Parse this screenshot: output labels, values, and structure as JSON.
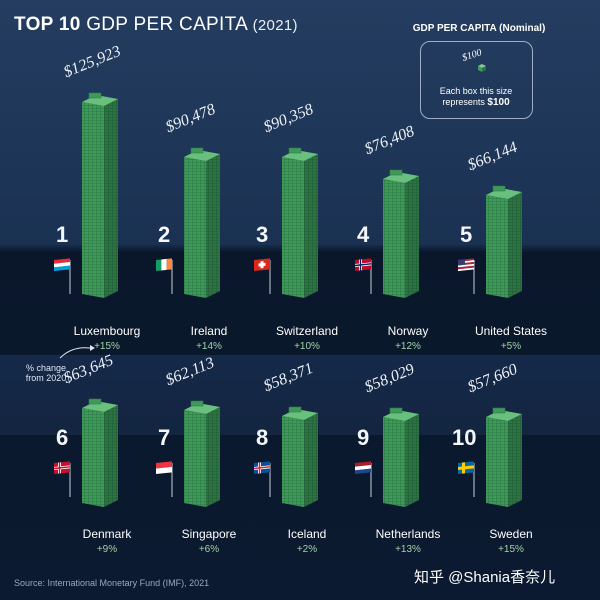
{
  "header": {
    "title_bold": "TOP 10",
    "title_rest": "GDP PER CAPITA",
    "title_year": "(2021)"
  },
  "legend": {
    "title": "GDP PER CAPITA (Nominal)",
    "sample_value": "$100",
    "line1": "Each box this size",
    "line2_prefix": "represents",
    "line2_value": "$100"
  },
  "note": "% change from 2020",
  "source": "Source: International Monetary Fund (IMF), 2021",
  "watermark": "知乎 @Shania香奈儿",
  "colors": {
    "block": "#3f9a5a",
    "block_dark": "#2c7443",
    "block_light": "#69c07d"
  },
  "chart_data": {
    "type": "bar",
    "title": "TOP 10 GDP PER CAPITA (2021)",
    "unit": "USD",
    "categories": [
      "Luxembourg",
      "Ireland",
      "Switzerland",
      "Norway",
      "United States",
      "Denmark",
      "Singapore",
      "Iceland",
      "Netherlands",
      "Sweden"
    ],
    "values": [
      125923,
      90478,
      90358,
      76408,
      66144,
      63645,
      62113,
      58371,
      58029,
      57660
    ],
    "items": [
      {
        "rank": "1",
        "country": "Luxembourg",
        "value": 125923,
        "label": "$125,923",
        "change": "+15%",
        "flag": "luxembourg-flag"
      },
      {
        "rank": "2",
        "country": "Ireland",
        "value": 90478,
        "label": "$90,478",
        "change": "+14%",
        "flag": "ireland-flag"
      },
      {
        "rank": "3",
        "country": "Switzerland",
        "value": 90358,
        "label": "$90,358",
        "change": "+10%",
        "flag": "switzerland-flag"
      },
      {
        "rank": "4",
        "country": "Norway",
        "value": 76408,
        "label": "$76,408",
        "change": "+12%",
        "flag": "norway-flag"
      },
      {
        "rank": "5",
        "country": "United States",
        "value": 66144,
        "label": "$66,144",
        "change": "+5%",
        "flag": "usa-flag"
      },
      {
        "rank": "6",
        "country": "Denmark",
        "value": 63645,
        "label": "$63,645",
        "change": "+9%",
        "flag": "denmark-flag"
      },
      {
        "rank": "7",
        "country": "Singapore",
        "value": 62113,
        "label": "$62,113",
        "change": "+6%",
        "flag": "singapore-flag"
      },
      {
        "rank": "8",
        "country": "Iceland",
        "value": 58371,
        "label": "$58,371",
        "change": "+2%",
        "flag": "iceland-flag"
      },
      {
        "rank": "9",
        "country": "Netherlands",
        "value": 58029,
        "label": "$58,029",
        "change": "+13%",
        "flag": "netherlands-flag"
      },
      {
        "rank": "10",
        "country": "Sweden",
        "value": 57660,
        "label": "$57,660",
        "change": "+15%",
        "flag": "sweden-flag"
      }
    ]
  }
}
